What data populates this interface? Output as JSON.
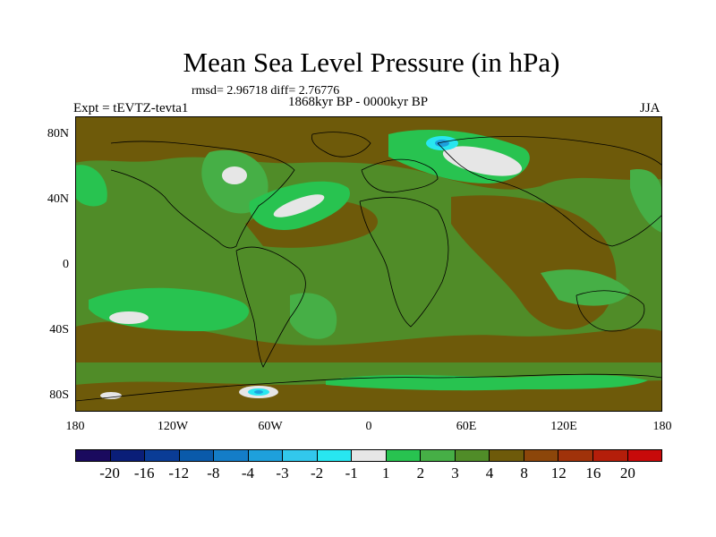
{
  "header": {
    "title": "Mean Sea Level Pressure (in hPa)",
    "stats": "rmsd= 2.96718 diff= 2.76776",
    "period": "1868kyr BP - 0000kyr BP",
    "expt": "Expt = tEVTZ-tevta1",
    "season": "JJA"
  },
  "axes": {
    "lat_labels": [
      "80N",
      "40N",
      "0",
      "40S",
      "80S"
    ],
    "lon_labels": [
      "180",
      "120W",
      "60W",
      "0",
      "60E",
      "120E",
      "180"
    ]
  },
  "colorbar": {
    "labels": [
      "-20",
      "-16",
      "-12",
      "-8",
      "-4",
      "-3",
      "-2",
      "-1",
      "1",
      "2",
      "3",
      "4",
      "8",
      "12",
      "16",
      "20"
    ],
    "colors": [
      "#1a0a5e",
      "#0a1e78",
      "#0a3c96",
      "#0a5aaa",
      "#147dc8",
      "#1ea0dc",
      "#32c8ec",
      "#28e6f0",
      "#e6e6e6",
      "#28c350",
      "#46af46",
      "#508c28",
      "#6e5a0a",
      "#8c460a",
      "#a0320a",
      "#b41e0a",
      "#c80a0a"
    ]
  },
  "field_colors": {
    "brown": "#6e5a0a",
    "olive": "#508c28",
    "mid_green": "#46af46",
    "bright_green": "#28c350",
    "white": "#e6e6e6",
    "cyan": "#28e6f0",
    "light_blue": "#1ea0dc",
    "coast": "#000000"
  }
}
